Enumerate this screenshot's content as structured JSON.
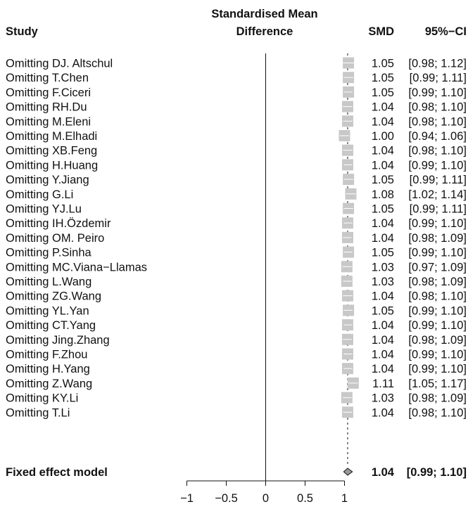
{
  "chart_data": {
    "type": "forest",
    "headers": {
      "study": "Study",
      "effect_line1": "Standardised Mean",
      "effect_line2": "Difference",
      "smd": "SMD",
      "ci": "95%−CI"
    },
    "studies": [
      {
        "label": "Omitting DJ. Altschul",
        "smd": 1.05,
        "lower": 0.98,
        "upper": 1.12,
        "smd_text": "1.05",
        "ci_text": "[0.98; 1.12]"
      },
      {
        "label": "Omitting T.Chen",
        "smd": 1.05,
        "lower": 0.99,
        "upper": 1.11,
        "smd_text": "1.05",
        "ci_text": "[0.99; 1.11]"
      },
      {
        "label": "Omitting F.Ciceri",
        "smd": 1.05,
        "lower": 0.99,
        "upper": 1.1,
        "smd_text": "1.05",
        "ci_text": "[0.99; 1.10]"
      },
      {
        "label": "Omitting RH.Du",
        "smd": 1.04,
        "lower": 0.98,
        "upper": 1.1,
        "smd_text": "1.04",
        "ci_text": "[0.98; 1.10]"
      },
      {
        "label": "Omitting M.Eleni",
        "smd": 1.04,
        "lower": 0.98,
        "upper": 1.1,
        "smd_text": "1.04",
        "ci_text": "[0.98; 1.10]"
      },
      {
        "label": "Omitting M.Elhadi",
        "smd": 1.0,
        "lower": 0.94,
        "upper": 1.06,
        "smd_text": "1.00",
        "ci_text": "[0.94; 1.06]"
      },
      {
        "label": "Omitting XB.Feng",
        "smd": 1.04,
        "lower": 0.98,
        "upper": 1.1,
        "smd_text": "1.04",
        "ci_text": "[0.98; 1.10]"
      },
      {
        "label": "Omitting H.Huang",
        "smd": 1.04,
        "lower": 0.99,
        "upper": 1.1,
        "smd_text": "1.04",
        "ci_text": "[0.99; 1.10]"
      },
      {
        "label": "Omitting Y.Jiang",
        "smd": 1.05,
        "lower": 0.99,
        "upper": 1.11,
        "smd_text": "1.05",
        "ci_text": "[0.99; 1.11]"
      },
      {
        "label": "Omitting G.Li",
        "smd": 1.08,
        "lower": 1.02,
        "upper": 1.14,
        "smd_text": "1.08",
        "ci_text": "[1.02; 1.14]"
      },
      {
        "label": "Omitting YJ.Lu",
        "smd": 1.05,
        "lower": 0.99,
        "upper": 1.11,
        "smd_text": "1.05",
        "ci_text": "[0.99; 1.11]"
      },
      {
        "label": "Omitting IH.Özdemir",
        "smd": 1.04,
        "lower": 0.99,
        "upper": 1.1,
        "smd_text": "1.04",
        "ci_text": "[0.99; 1.10]"
      },
      {
        "label": "Omitting OM. Peiro",
        "smd": 1.04,
        "lower": 0.98,
        "upper": 1.09,
        "smd_text": "1.04",
        "ci_text": "[0.98; 1.09]"
      },
      {
        "label": "Omitting P.Sinha",
        "smd": 1.05,
        "lower": 0.99,
        "upper": 1.1,
        "smd_text": "1.05",
        "ci_text": "[0.99; 1.10]"
      },
      {
        "label": "Omitting MC.Viana−Llamas",
        "smd": 1.03,
        "lower": 0.97,
        "upper": 1.09,
        "smd_text": "1.03",
        "ci_text": "[0.97; 1.09]"
      },
      {
        "label": "Omitting L.Wang",
        "smd": 1.03,
        "lower": 0.98,
        "upper": 1.09,
        "smd_text": "1.03",
        "ci_text": "[0.98; 1.09]"
      },
      {
        "label": "Omitting ZG.Wang",
        "smd": 1.04,
        "lower": 0.98,
        "upper": 1.1,
        "smd_text": "1.04",
        "ci_text": "[0.98; 1.10]"
      },
      {
        "label": "Omitting YL.Yan",
        "smd": 1.05,
        "lower": 0.99,
        "upper": 1.1,
        "smd_text": "1.05",
        "ci_text": "[0.99; 1.10]"
      },
      {
        "label": "Omitting CT.Yang",
        "smd": 1.04,
        "lower": 0.99,
        "upper": 1.1,
        "smd_text": "1.04",
        "ci_text": "[0.99; 1.10]"
      },
      {
        "label": "Omitting Jing.Zhang",
        "smd": 1.04,
        "lower": 0.98,
        "upper": 1.09,
        "smd_text": "1.04",
        "ci_text": "[0.98; 1.09]"
      },
      {
        "label": "Omitting F.Zhou",
        "smd": 1.04,
        "lower": 0.99,
        "upper": 1.1,
        "smd_text": "1.04",
        "ci_text": "[0.99; 1.10]"
      },
      {
        "label": "Omitting H.Yang",
        "smd": 1.04,
        "lower": 0.99,
        "upper": 1.1,
        "smd_text": "1.04",
        "ci_text": "[0.99; 1.10]"
      },
      {
        "label": "Omitting Z.Wang",
        "smd": 1.11,
        "lower": 1.05,
        "upper": 1.17,
        "smd_text": "1.11",
        "ci_text": "[1.05; 1.17]"
      },
      {
        "label": "Omitting KY.Li",
        "smd": 1.03,
        "lower": 0.98,
        "upper": 1.09,
        "smd_text": "1.03",
        "ci_text": "[0.98; 1.09]"
      },
      {
        "label": "Omitting T.Li",
        "smd": 1.04,
        "lower": 0.98,
        "upper": 1.1,
        "smd_text": "1.04",
        "ci_text": "[0.98; 1.10]"
      }
    ],
    "pooled": {
      "label": "Fixed effect model",
      "smd": 1.04,
      "lower": 0.99,
      "upper": 1.1,
      "smd_text": "1.04",
      "ci_text": "[0.99; 1.10]"
    },
    "x_ticks": [
      -1,
      -0.5,
      0,
      0.5,
      1
    ],
    "x_tick_labels": [
      "−1",
      "−0.5",
      "0",
      "0.5",
      "1"
    ],
    "xlim": [
      -1,
      1
    ],
    "null_line": 0,
    "reference_line": 1.04,
    "colors": {
      "box": "#c8c8c8",
      "diamond": "#999999",
      "line": "#111111"
    }
  }
}
